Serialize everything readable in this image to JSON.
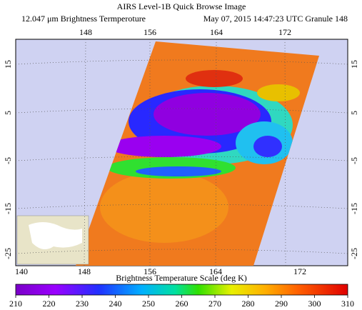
{
  "title": "AIRS Level-1B Quick Browse Image",
  "subtitle_left": "12.047 μm Brightness Termperoture",
  "subtitle_right": "May 07, 2015 14:47:23 UTC Granule 148",
  "map": {
    "lon_top": [
      148,
      156,
      164,
      172
    ],
    "lon_bottom": [
      140,
      148,
      156,
      164,
      172
    ],
    "lat_left": [
      15,
      5,
      -5,
      -15,
      -25
    ],
    "lat_right": [
      15,
      5,
      -5,
      -15,
      -25
    ]
  },
  "colorbar": {
    "label": "Brightness Temperature Scale (deg K)",
    "lim": [
      210,
      310
    ],
    "ticks": [
      210,
      220,
      230,
      240,
      250,
      260,
      270,
      280,
      290,
      300,
      310
    ]
  }
}
